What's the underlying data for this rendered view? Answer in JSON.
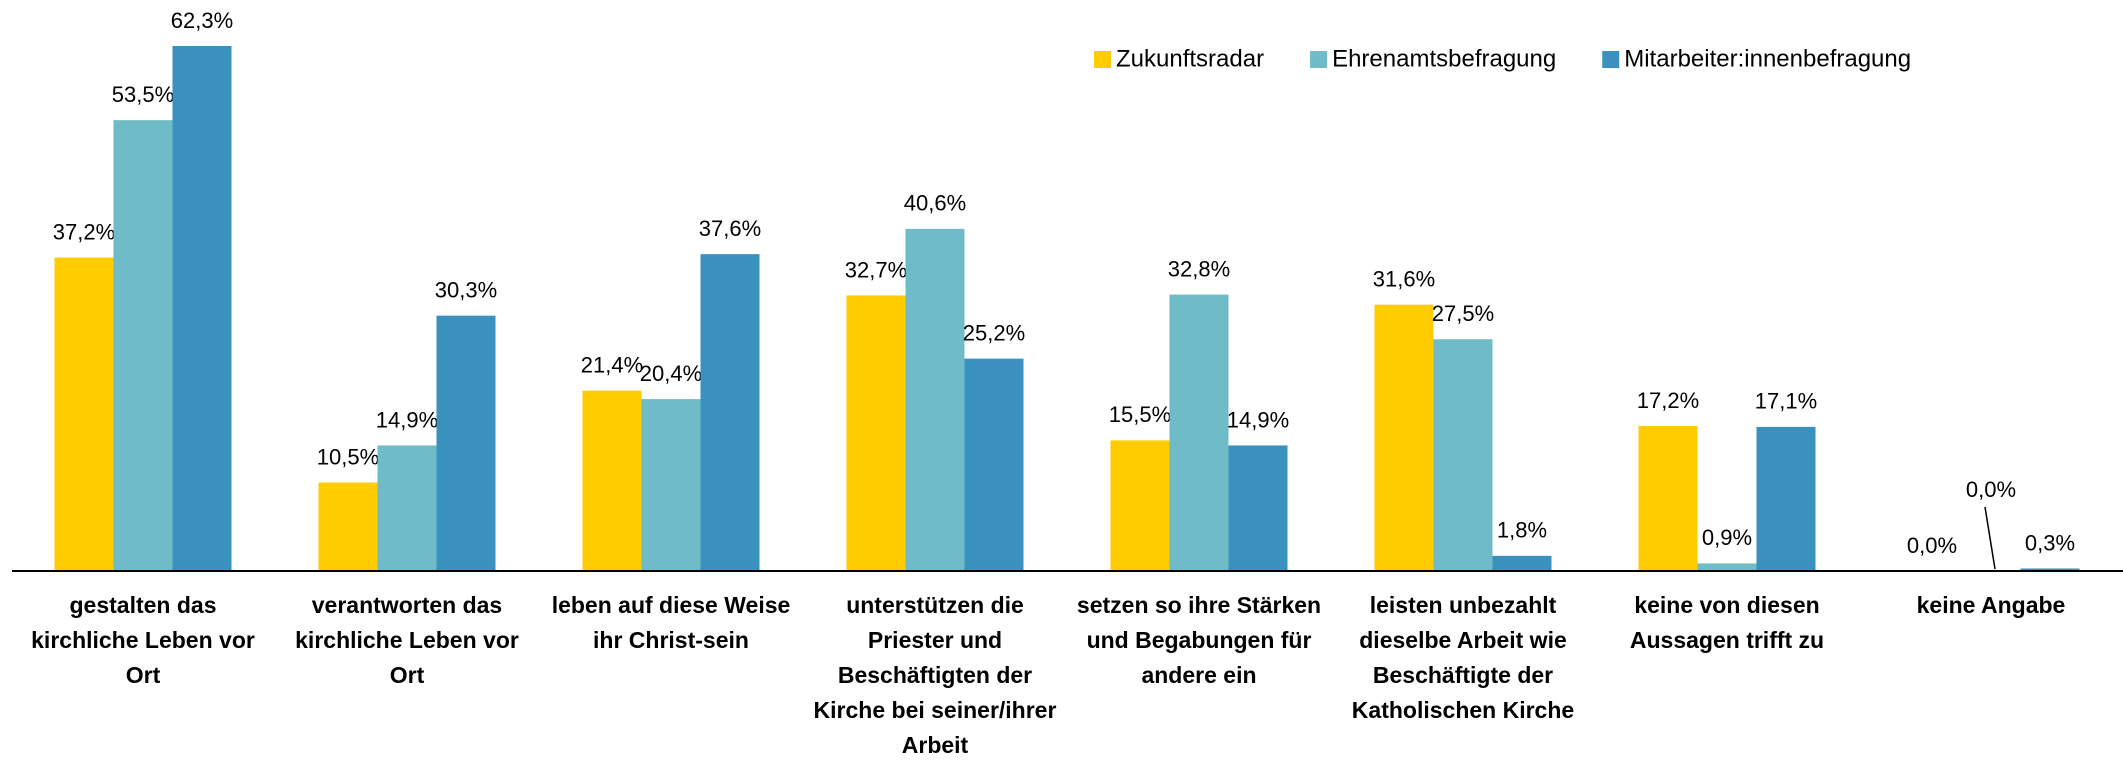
{
  "chart_data": {
    "type": "bar",
    "categories": [
      "gestalten das kirchliche Leben vor Ort",
      "verantworten das kirchliche Leben vor Ort",
      "leben auf diese Weise ihr Christ-sein",
      "unterstützen die Priester und Beschäftigten der Kirche bei seiner/ihrer Arbeit",
      "setzen so ihre Stärken und Begabungen für andere ein",
      "leisten unbezahlt dieselbe Arbeit wie Beschäftigte der Katholischen Kirche",
      "keine von diesen Aussagen trifft zu",
      "keine Angabe"
    ],
    "series": [
      {
        "name": "Zukunftsradar",
        "color": "#FFCC00",
        "values": [
          37.2,
          10.5,
          21.4,
          32.7,
          15.5,
          31.6,
          17.2,
          0.0
        ],
        "value_labels": [
          "37,2%",
          "10,5%",
          "21,4%",
          "32,7%",
          "15,5%",
          "31,6%",
          "17,2%",
          "0,0%"
        ]
      },
      {
        "name": "Ehrenamtsbefragung",
        "color": "#6FBCC8",
        "values": [
          53.5,
          14.9,
          20.4,
          40.6,
          32.8,
          27.5,
          0.9,
          0.0
        ],
        "value_labels": [
          "53,5%",
          "14,9%",
          "20,4%",
          "40,6%",
          "32,8%",
          "27,5%",
          "0,9%",
          "0,0%"
        ]
      },
      {
        "name": "Mitarbeiter:innenbefragung",
        "color": "#3A91BD",
        "values": [
          62.3,
          30.3,
          37.6,
          25.2,
          14.9,
          1.8,
          17.1,
          0.3
        ],
        "value_labels": [
          "62,3%",
          "30,3%",
          "37,6%",
          "25,2%",
          "14,9%",
          "1,8%",
          "17,1%",
          "0,3%"
        ]
      }
    ],
    "legend": "top-right"
  }
}
